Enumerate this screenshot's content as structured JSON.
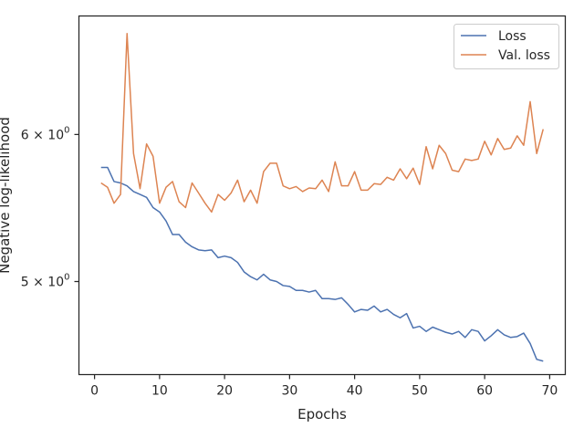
{
  "chart_data": {
    "type": "line",
    "title": "",
    "xlabel": "Epochs",
    "ylabel": "Negative log-likelihood",
    "xlim": [
      -2.4,
      72.4
    ],
    "xticks": [
      0,
      10,
      20,
      30,
      40,
      50,
      60,
      70
    ],
    "ylim": [
      4.455,
      6.95
    ],
    "yscale": "log",
    "yticks": [
      {
        "value": 5,
        "base": "5",
        "exp": "0"
      },
      {
        "value": 6,
        "base": "6",
        "exp": "0"
      }
    ],
    "grid": false,
    "legend_position": "top-right",
    "series": [
      {
        "name": "Loss",
        "color": "#4c72b0",
        "x": [
          1,
          2,
          3,
          4,
          5,
          6,
          7,
          8,
          9,
          10,
          11,
          12,
          13,
          14,
          15,
          16,
          17,
          18,
          19,
          20,
          21,
          22,
          23,
          24,
          25,
          26,
          27,
          28,
          29,
          30,
          31,
          32,
          33,
          34,
          35,
          36,
          37,
          38,
          39,
          40,
          41,
          42,
          43,
          44,
          45,
          46,
          47,
          48,
          49,
          50,
          51,
          52,
          53,
          54,
          55,
          56,
          57,
          58,
          59,
          60,
          61,
          62,
          63,
          64,
          65,
          66,
          67,
          68,
          69
        ],
        "y": [
          5.76,
          5.76,
          5.66,
          5.65,
          5.63,
          5.59,
          5.57,
          5.55,
          5.48,
          5.45,
          5.39,
          5.3,
          5.3,
          5.25,
          5.22,
          5.2,
          5.195,
          5.2,
          5.15,
          5.16,
          5.15,
          5.12,
          5.06,
          5.03,
          5.01,
          5.045,
          5.01,
          5.0,
          4.975,
          4.97,
          4.945,
          4.945,
          4.935,
          4.945,
          4.895,
          4.895,
          4.89,
          4.9,
          4.86,
          4.815,
          4.83,
          4.825,
          4.85,
          4.815,
          4.83,
          4.8,
          4.78,
          4.805,
          4.72,
          4.73,
          4.7,
          4.725,
          4.71,
          4.695,
          4.685,
          4.7,
          4.665,
          4.71,
          4.7,
          4.645,
          4.675,
          4.71,
          4.68,
          4.665,
          4.67,
          4.69,
          4.63,
          4.54,
          4.53
        ]
      },
      {
        "name": "Val. loss",
        "color": "#dd8452",
        "x": [
          1,
          2,
          3,
          4,
          5,
          6,
          7,
          8,
          9,
          10,
          11,
          12,
          13,
          14,
          15,
          16,
          17,
          18,
          19,
          20,
          21,
          22,
          23,
          24,
          25,
          26,
          27,
          28,
          29,
          30,
          31,
          32,
          33,
          34,
          35,
          36,
          37,
          38,
          39,
          40,
          41,
          42,
          43,
          44,
          45,
          46,
          47,
          48,
          49,
          50,
          51,
          52,
          53,
          54,
          55,
          56,
          57,
          58,
          59,
          60,
          61,
          62,
          63,
          64,
          65,
          66,
          67,
          68,
          69
        ],
        "y": [
          5.65,
          5.62,
          5.51,
          5.57,
          6.8,
          5.86,
          5.61,
          5.93,
          5.84,
          5.51,
          5.62,
          5.66,
          5.52,
          5.48,
          5.65,
          5.58,
          5.51,
          5.45,
          5.57,
          5.53,
          5.58,
          5.67,
          5.52,
          5.6,
          5.51,
          5.73,
          5.79,
          5.79,
          5.63,
          5.61,
          5.625,
          5.59,
          5.615,
          5.61,
          5.67,
          5.59,
          5.8,
          5.63,
          5.63,
          5.73,
          5.6,
          5.6,
          5.645,
          5.64,
          5.69,
          5.67,
          5.75,
          5.68,
          5.755,
          5.64,
          5.91,
          5.75,
          5.92,
          5.86,
          5.74,
          5.73,
          5.82,
          5.81,
          5.82,
          5.95,
          5.85,
          5.97,
          5.89,
          5.9,
          5.99,
          5.92,
          6.25,
          5.86,
          6.04
        ]
      }
    ]
  }
}
